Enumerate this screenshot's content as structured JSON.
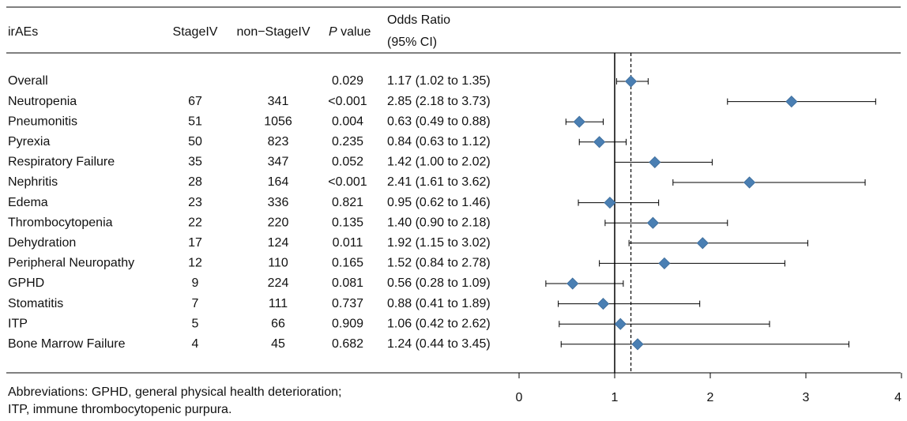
{
  "table": {
    "headers": {
      "name": "irAEs",
      "stage": "StageIV",
      "nonstage": "non−StageIV",
      "p_italic": "P",
      "p_rest": " value",
      "or_line1": "Odds Ratio",
      "or_line2": "(95% CI)"
    },
    "rows": [
      {
        "name": "Overall",
        "stage": "",
        "nonstage": "",
        "p": "0.029",
        "or": "1.17 (1.02 to 1.35)"
      },
      {
        "name": "Neutropenia",
        "stage": "67",
        "nonstage": "341",
        "p": "<0.001",
        "or": "2.85 (2.18 to 3.73)"
      },
      {
        "name": "Pneumonitis",
        "stage": "51",
        "nonstage": "1056",
        "p": "0.004",
        "or": "0.63 (0.49 to 0.88)"
      },
      {
        "name": "Pyrexia",
        "stage": "50",
        "nonstage": "823",
        "p": "0.235",
        "or": "0.84 (0.63 to 1.12)"
      },
      {
        "name": "Respiratory Failure",
        "stage": "35",
        "nonstage": "347",
        "p": "0.052",
        "or": "1.42 (1.00 to 2.02)"
      },
      {
        "name": "Nephritis",
        "stage": "28",
        "nonstage": "164",
        "p": "<0.001",
        "or": "2.41 (1.61 to 3.62)"
      },
      {
        "name": "Edema",
        "stage": "23",
        "nonstage": "336",
        "p": "0.821",
        "or": "0.95 (0.62 to 1.46)"
      },
      {
        "name": "Thrombocytopenia",
        "stage": "22",
        "nonstage": "220",
        "p": "0.135",
        "or": "1.40 (0.90 to 2.18)"
      },
      {
        "name": "Dehydration",
        "stage": "17",
        "nonstage": "124",
        "p": "0.011",
        "or": "1.92 (1.15 to 3.02)"
      },
      {
        "name": "Peripheral Neuropathy",
        "stage": "12",
        "nonstage": "110",
        "p": "0.165",
        "or": "1.52 (0.84 to 2.78)"
      },
      {
        "name": "GPHD",
        "stage": "9",
        "nonstage": "224",
        "p": "0.081",
        "or": "0.56 (0.28 to 1.09)"
      },
      {
        "name": "Stomatitis",
        "stage": "7",
        "nonstage": "111",
        "p": "0.737",
        "or": "0.88 (0.41 to 1.89)"
      },
      {
        "name": "ITP",
        "stage": "5",
        "nonstage": "66",
        "p": "0.909",
        "or": "1.06 (0.42 to 2.62)"
      },
      {
        "name": "Bone Marrow Failure",
        "stage": "4",
        "nonstage": "45",
        "p": "0.682",
        "or": "1.24 (0.44 to 3.45)"
      }
    ]
  },
  "footnote": {
    "line1": "Abbreviations: GPHD, general physical health deterioration;",
    "line2": "ITP, immune thrombocytopenic purpura."
  },
  "chart_data": {
    "type": "forest",
    "title": "",
    "xlabel": "",
    "ylabel": "",
    "xlim": [
      0,
      4
    ],
    "x_ticks": [
      0,
      1,
      2,
      3,
      4
    ],
    "reference_line": 1,
    "overall_dashed_line": 1.17,
    "marker_color": "#4a7fb3",
    "categories": [
      "Overall",
      "Neutropenia",
      "Pneumonitis",
      "Pyrexia",
      "Respiratory Failure",
      "Nephritis",
      "Edema",
      "Thrombocytopenia",
      "Dehydration",
      "Peripheral Neuropathy",
      "GPHD",
      "Stomatitis",
      "ITP",
      "Bone Marrow Failure"
    ],
    "estimates": [
      1.17,
      2.85,
      0.63,
      0.84,
      1.42,
      2.41,
      0.95,
      1.4,
      1.92,
      1.52,
      0.56,
      0.88,
      1.06,
      1.24
    ],
    "lower": [
      1.02,
      2.18,
      0.49,
      0.63,
      1.0,
      1.61,
      0.62,
      0.9,
      1.15,
      0.84,
      0.28,
      0.41,
      0.42,
      0.44
    ],
    "upper": [
      1.35,
      3.73,
      0.88,
      1.12,
      2.02,
      3.62,
      1.46,
      2.18,
      3.02,
      2.78,
      1.09,
      1.89,
      2.62,
      3.45
    ]
  }
}
